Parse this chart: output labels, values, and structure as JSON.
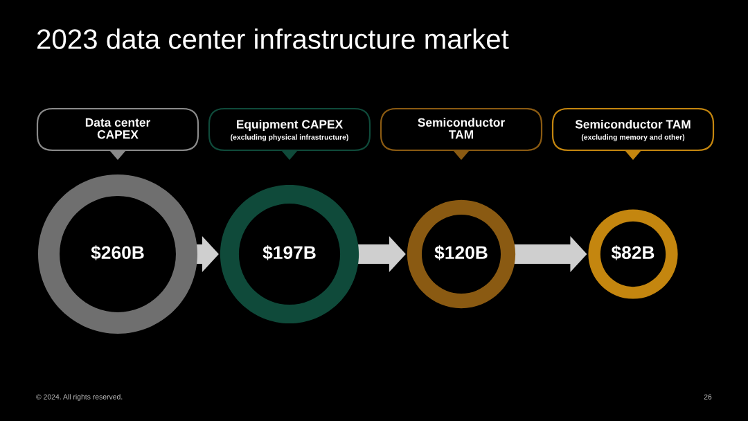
{
  "chart_data": {
    "type": "other",
    "title": "2023 data center infrastructure market",
    "categories": [
      "Data center\nCAPEX",
      "Equipment CAPEX",
      "Semiconductor\nTAM",
      "Semiconductor TAM"
    ],
    "values": [
      260,
      197,
      120,
      82
    ],
    "value_labels": [
      "$260B",
      "$197B",
      "$120B",
      "$82B"
    ],
    "colors": [
      "#6f6f6f",
      "#0f4a3a",
      "#8a5a12",
      "#c4860f"
    ],
    "annotations": [
      {
        "text": "(excluding physical infrastructure)",
        "x": "Equipment CAPEX"
      },
      {
        "text": "(excluding memory and other)",
        "x": "Semiconductor TAM"
      },
      "© 2024. All rights reserved.",
      "26"
    ]
  }
}
